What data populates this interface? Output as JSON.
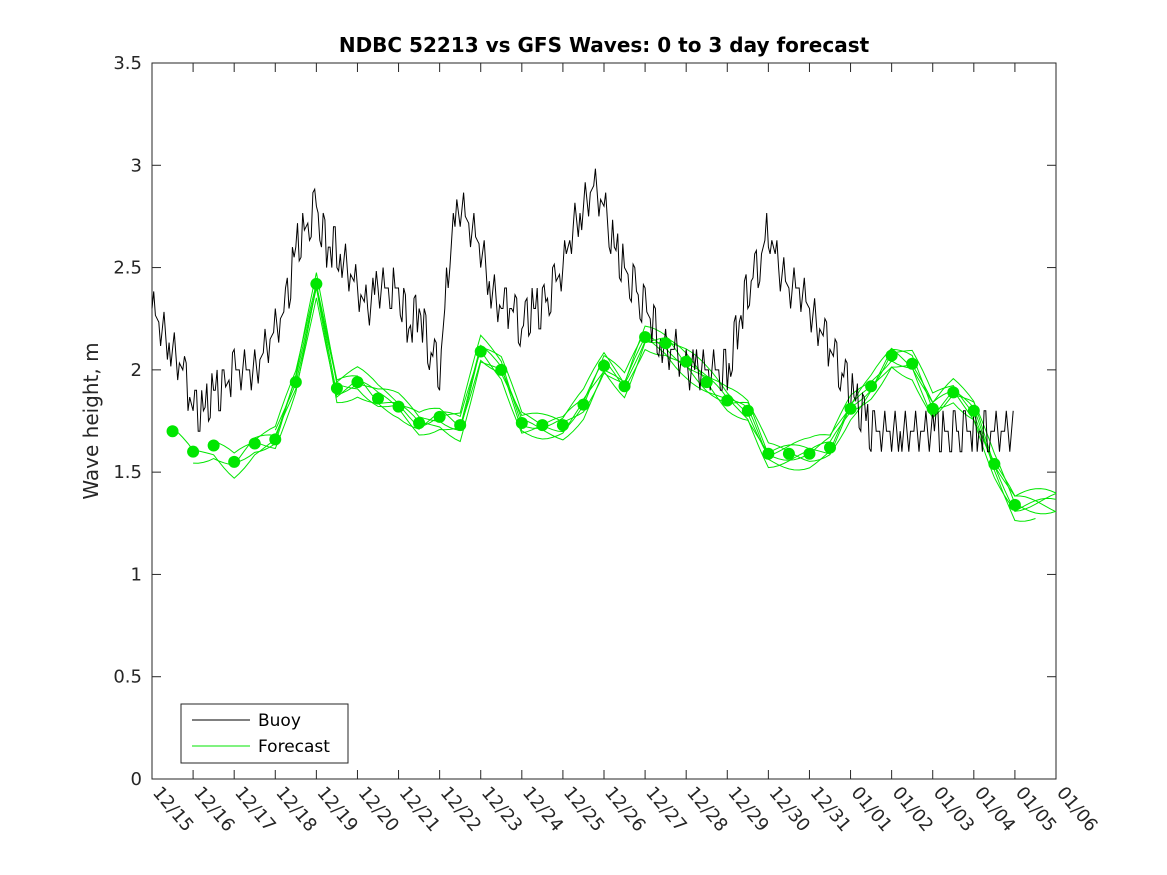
{
  "chart_data": {
    "type": "line",
    "title": "NDBC 52213 vs GFS Waves: 0 to 3 day forecast",
    "xlabel": "",
    "ylabel": "Wave height, m",
    "x_unit": "days since 12/15",
    "xlim": [
      0,
      22
    ],
    "ylim": [
      0,
      3.5
    ],
    "yticks": [
      0,
      0.5,
      1,
      1.5,
      2,
      2.5,
      3,
      3.5
    ],
    "ytick_labels": [
      "0",
      "0.5",
      "1",
      "1.5",
      "2",
      "2.5",
      "3",
      "3.5"
    ],
    "xtick_labels": [
      "12/15",
      "12/16",
      "12/17",
      "12/18",
      "12/19",
      "12/20",
      "12/21",
      "12/22",
      "12/23",
      "12/24",
      "12/25",
      "12/26",
      "12/27",
      "12/28",
      "12/29",
      "12/30",
      "12/31",
      "01/01",
      "01/02",
      "01/03",
      "01/04",
      "01/05",
      "01/06"
    ],
    "legend": {
      "location": "bottom-left",
      "entries": [
        {
          "label": "Buoy",
          "color": "#000000"
        },
        {
          "label": "Forecast",
          "color": "#00e600"
        }
      ]
    },
    "series": [
      {
        "name": "Buoy",
        "color": "#000000",
        "x": [
          0,
          0.25,
          0.5,
          0.75,
          1,
          1.25,
          1.5,
          1.75,
          2,
          2.25,
          2.5,
          2.75,
          3,
          3.25,
          3.5,
          3.75,
          4,
          4.25,
          4.5,
          4.75,
          5,
          5.25,
          5.5,
          5.75,
          6,
          6.25,
          6.5,
          6.75,
          7,
          7.25,
          7.5,
          7.75,
          8,
          8.25,
          8.5,
          8.75,
          9,
          9.25,
          9.5,
          9.75,
          10,
          10.25,
          10.5,
          10.75,
          11,
          11.25,
          11.5,
          11.75,
          12,
          12.25,
          12.5,
          12.75,
          13,
          13.25,
          13.5,
          13.75,
          14,
          14.25,
          14.5,
          14.75,
          15,
          15.25,
          15.5,
          15.75,
          16,
          16.25,
          16.5,
          16.75,
          17,
          17.25,
          17.5,
          17.75,
          18,
          18.25,
          18.5,
          18.75,
          19,
          19.25,
          19.5,
          19.75,
          20,
          20.25,
          20.5,
          20.75,
          21
        ],
        "values": [
          2.3,
          2.2,
          2.1,
          2.0,
          1.8,
          1.8,
          1.9,
          1.9,
          2.0,
          2.0,
          2.0,
          2.1,
          2.2,
          2.3,
          2.6,
          2.7,
          2.8,
          2.6,
          2.6,
          2.5,
          2.4,
          2.3,
          2.4,
          2.4,
          2.4,
          2.2,
          2.3,
          2.1,
          2.0,
          2.6,
          2.8,
          2.7,
          2.6,
          2.4,
          2.3,
          2.3,
          2.2,
          2.3,
          2.3,
          2.4,
          2.5,
          2.7,
          2.8,
          2.9,
          2.8,
          2.6,
          2.5,
          2.4,
          2.3,
          2.2,
          2.1,
          2.1,
          2.0,
          2.0,
          2.0,
          2.0,
          2.0,
          2.2,
          2.4,
          2.5,
          2.7,
          2.5,
          2.4,
          2.4,
          2.3,
          2.2,
          2.1,
          2.0,
          1.9,
          1.8,
          1.7,
          1.7,
          1.7,
          1.7,
          1.7,
          1.7,
          1.7,
          1.7,
          1.7,
          1.7,
          1.7,
          1.7,
          1.7,
          1.7,
          1.7
        ]
      },
      {
        "name": "Forecast",
        "color": "#00e600",
        "x": [
          0.5,
          1,
          1.5,
          2,
          2.5,
          3,
          3.5,
          4,
          4.5,
          5,
          5.5,
          6,
          6.5,
          7,
          7.5,
          8,
          8.5,
          9,
          9.5,
          10,
          10.5,
          11,
          11.5,
          12,
          12.5,
          13,
          13.5,
          14,
          14.5,
          15,
          15.5,
          16,
          16.5,
          17,
          17.5,
          18,
          18.5,
          19,
          19.5,
          20,
          20.5,
          21
        ],
        "values": [
          1.7,
          1.6,
          1.63,
          1.55,
          1.64,
          1.66,
          1.94,
          2.42,
          1.91,
          1.94,
          1.86,
          1.82,
          1.74,
          1.77,
          1.73,
          2.09,
          2.0,
          1.74,
          1.73,
          1.73,
          1.83,
          2.02,
          1.92,
          2.16,
          2.13,
          2.04,
          1.94,
          1.85,
          1.8,
          1.59,
          1.59,
          1.59,
          1.62,
          1.81,
          1.92,
          2.07,
          2.03,
          1.81,
          1.89,
          1.8,
          1.54,
          1.34
        ]
      }
    ]
  }
}
